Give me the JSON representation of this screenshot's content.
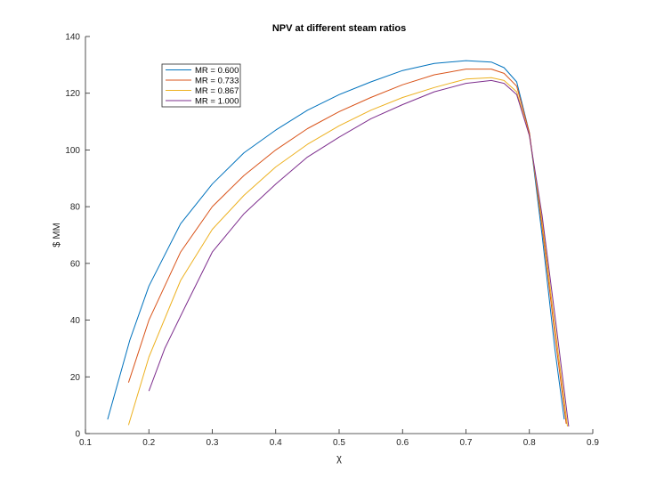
{
  "chart_data": {
    "type": "line",
    "title": "NPV at different steam ratios",
    "xlabel": "χ",
    "ylabel": "$ MM",
    "xlim": [
      0.1,
      0.9
    ],
    "ylim": [
      0,
      140
    ],
    "xticks": [
      "0.1",
      "0.2",
      "0.3",
      "0.4",
      "0.5",
      "0.6",
      "0.7",
      "0.8",
      "0.9"
    ],
    "yticks": [
      "0",
      "20",
      "40",
      "60",
      "80",
      "100",
      "120",
      "140"
    ],
    "grid": false,
    "legend_position": "top-left",
    "series": [
      {
        "name": "MR = 0.600",
        "color": "#0072BD",
        "x": [
          0.135,
          0.17,
          0.2,
          0.25,
          0.3,
          0.35,
          0.4,
          0.45,
          0.5,
          0.55,
          0.6,
          0.65,
          0.7,
          0.74,
          0.76,
          0.78,
          0.8,
          0.82,
          0.84,
          0.855
        ],
        "y": [
          5,
          33,
          52,
          74,
          88,
          99,
          107,
          114,
          119.5,
          124,
          128,
          130.5,
          131.5,
          131,
          129,
          124,
          106,
          70,
          30,
          5
        ]
      },
      {
        "name": "MR = 0.733",
        "color": "#D95319",
        "x": [
          0.168,
          0.2,
          0.25,
          0.3,
          0.35,
          0.4,
          0.45,
          0.5,
          0.55,
          0.6,
          0.65,
          0.7,
          0.74,
          0.76,
          0.78,
          0.8,
          0.82,
          0.84,
          0.858
        ],
        "y": [
          18,
          40,
          64,
          80,
          91,
          100,
          107.5,
          113.5,
          118.5,
          123,
          126.5,
          128.5,
          128.5,
          127,
          122.5,
          106,
          73,
          35,
          3.5
        ]
      },
      {
        "name": "MR = 0.867",
        "color": "#EDB120",
        "x": [
          0.168,
          0.2,
          0.25,
          0.3,
          0.35,
          0.4,
          0.45,
          0.5,
          0.55,
          0.6,
          0.65,
          0.7,
          0.74,
          0.76,
          0.78,
          0.8,
          0.82,
          0.84,
          0.86
        ],
        "y": [
          3,
          27,
          54,
          72,
          84,
          94,
          102,
          108.5,
          114,
          118.5,
          122,
          125,
          125.5,
          124.5,
          120.5,
          105,
          75,
          38,
          2.5
        ]
      },
      {
        "name": "MR = 1.000",
        "color": "#7E2F8E",
        "x": [
          0.2,
          0.225,
          0.26,
          0.3,
          0.35,
          0.4,
          0.45,
          0.5,
          0.55,
          0.6,
          0.65,
          0.7,
          0.74,
          0.76,
          0.78,
          0.8,
          0.82,
          0.84,
          0.862
        ],
        "y": [
          15,
          30,
          46,
          64,
          77.5,
          88,
          97.5,
          104.5,
          111,
          116,
          120.5,
          123.5,
          124.5,
          123.5,
          119.5,
          105,
          77,
          42,
          2.5
        ]
      }
    ]
  }
}
